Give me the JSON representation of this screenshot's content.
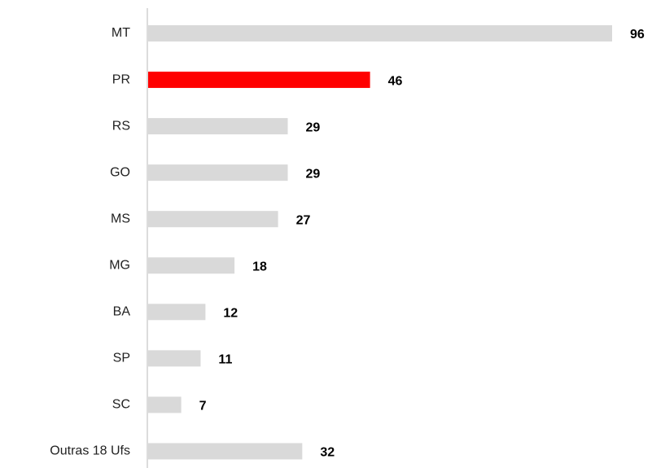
{
  "chart_data": {
    "type": "bar",
    "orientation": "horizontal",
    "categories": [
      "MT",
      "PR",
      "RS",
      "GO",
      "MS",
      "MG",
      "BA",
      "SP",
      "SC",
      "Outras 18 Ufs"
    ],
    "values": [
      96,
      46,
      29,
      29,
      27,
      18,
      12,
      11,
      7,
      32
    ],
    "colors": [
      "#d9d9d9",
      "#ff0000",
      "#d9d9d9",
      "#d9d9d9",
      "#d9d9d9",
      "#d9d9d9",
      "#d9d9d9",
      "#d9d9d9",
      "#d9d9d9",
      "#d9d9d9"
    ]
  }
}
